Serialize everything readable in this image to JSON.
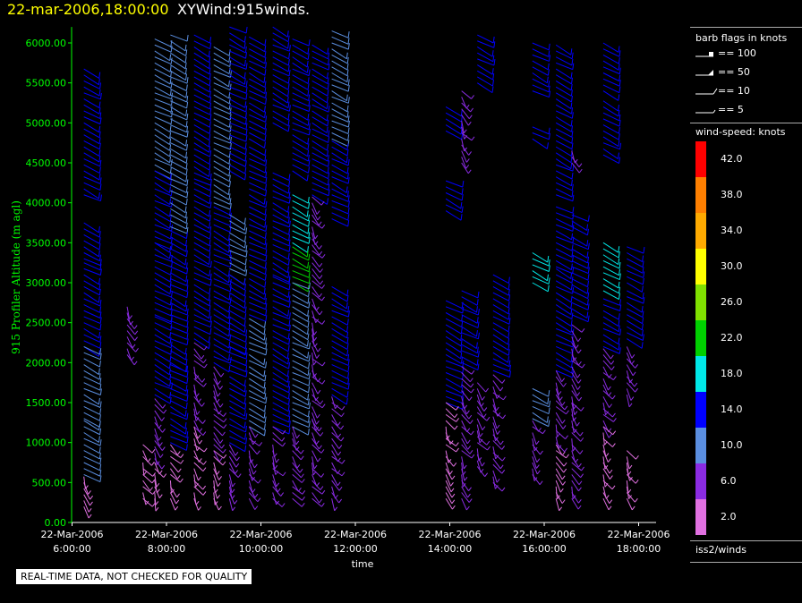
{
  "title": {
    "datetime": "22-mar-2006,18:00:00",
    "name": "XYWind:915winds."
  },
  "notice": "REAL-TIME DATA, NOT CHECKED FOR QUALITY",
  "legend": {
    "barb_title": "barb flags in knots",
    "barbs": [
      {
        "kind": "flag",
        "label": "== 100"
      },
      {
        "kind": "pennant",
        "label": "== 50"
      },
      {
        "kind": "full",
        "label": "== 10"
      },
      {
        "kind": "half",
        "label": "== 5"
      }
    ],
    "colorbar_title": "wind-speed: knots",
    "colorbar": [
      {
        "label": "42.0",
        "color": "#ff0000"
      },
      {
        "label": "38.0",
        "color": "#ff7f00"
      },
      {
        "label": "34.0",
        "color": "#ffaa00"
      },
      {
        "label": "30.0",
        "color": "#ffff00"
      },
      {
        "label": "26.0",
        "color": "#80e000"
      },
      {
        "label": "22.0",
        "color": "#00d000"
      },
      {
        "label": "18.0",
        "color": "#00e8e8"
      },
      {
        "label": "14.0",
        "color": "#0000ff"
      },
      {
        "label": "10.0",
        "color": "#5a8ee0"
      },
      {
        "label": "6.0",
        "color": "#8a2be2"
      },
      {
        "label": "2.0",
        "color": "#e070e0"
      }
    ],
    "footer": "iss2/winds"
  },
  "chart_data": {
    "type": "scatter",
    "title": "22-mar-2006,18:00:00  XYWind:915winds.",
    "xlabel": "time",
    "ylabel": "915 Profiler Altitude (m agl)",
    "xlim": [
      "22-Mar-2006 5:50:00",
      "22-Mar-2006 18:15:00"
    ],
    "ylim": [
      0,
      6200
    ],
    "x_ticks": [
      {
        "date": "22-Mar-2006",
        "time": "6:00:00"
      },
      {
        "date": "22-Mar-2006",
        "time": "8:00:00"
      },
      {
        "date": "22-Mar-2006",
        "time": "10:00:00"
      },
      {
        "date": "22-Mar-2006",
        "time": "12:00:00"
      },
      {
        "date": "22-Mar-2006",
        "time": "14:00:00"
      },
      {
        "date": "22-Mar-2006",
        "time": "16:00:00"
      },
      {
        "date": "22-Mar-2006",
        "time": "18:00:00"
      }
    ],
    "y_ticks": [
      "0.00",
      "500.00",
      "1000.00",
      "1500.00",
      "2000.00",
      "2500.00",
      "3000.00",
      "3500.00",
      "4000.00",
      "4500.00",
      "5000.00",
      "5500.00",
      "6000.00"
    ],
    "grid": false,
    "legend_position": "right",
    "wind_barbs": [
      {
        "time": "6:15",
        "segments": [
          [
            4100,
            5700,
            14
          ],
          [
            3300,
            3800,
            14
          ],
          [
            2200,
            3300,
            14
          ],
          [
            1300,
            2200,
            10
          ],
          [
            600,
            1300,
            10
          ],
          [
            200,
            600,
            2
          ]
        ]
      },
      {
        "time": "7:10",
        "segments": [
          [
            2100,
            2700,
            6
          ]
        ]
      },
      {
        "time": "7:30",
        "segments": [
          [
            300,
            1000,
            2
          ]
        ]
      },
      {
        "time": "7:45",
        "segments": [
          [
            4400,
            6100,
            10
          ],
          [
            3500,
            4400,
            14
          ],
          [
            2600,
            3500,
            14
          ],
          [
            1600,
            2600,
            14
          ],
          [
            800,
            1600,
            6
          ],
          [
            300,
            800,
            2
          ]
        ]
      },
      {
        "time": "8:05",
        "segments": [
          [
            3700,
            6100,
            10
          ],
          [
            2000,
            3700,
            14
          ],
          [
            1000,
            2000,
            14
          ],
          [
            300,
            1000,
            2
          ]
        ]
      },
      {
        "time": "8:35",
        "segments": [
          [
            4300,
            6100,
            14
          ],
          [
            2300,
            4300,
            14
          ],
          [
            1200,
            2300,
            6
          ],
          [
            300,
            1200,
            2
          ]
        ]
      },
      {
        "time": "9:00",
        "segments": [
          [
            4000,
            6000,
            10
          ],
          [
            2000,
            4000,
            14
          ],
          [
            900,
            2000,
            6
          ],
          [
            300,
            900,
            2
          ]
        ]
      },
      {
        "time": "9:20",
        "segments": [
          [
            4400,
            6200,
            14
          ],
          [
            3100,
            3900,
            10
          ],
          [
            2200,
            3100,
            14
          ],
          [
            1000,
            2200,
            14
          ],
          [
            300,
            1000,
            6
          ]
        ]
      },
      {
        "time": "9:45",
        "segments": [
          [
            4800,
            6100,
            14
          ],
          [
            2600,
            4700,
            14
          ],
          [
            1200,
            2600,
            10
          ],
          [
            300,
            1200,
            6
          ]
        ]
      },
      {
        "time": "10:15",
        "segments": [
          [
            5000,
            6200,
            14
          ],
          [
            3100,
            4400,
            14
          ],
          [
            1200,
            3100,
            14
          ],
          [
            300,
            1200,
            6
          ]
        ]
      },
      {
        "time": "10:40",
        "segments": [
          [
            4400,
            6100,
            14
          ],
          [
            3500,
            4100,
            18
          ],
          [
            3000,
            3500,
            22
          ],
          [
            1200,
            3000,
            10
          ],
          [
            300,
            1200,
            6
          ]
        ]
      },
      {
        "time": "11:05",
        "segments": [
          [
            4100,
            6000,
            14
          ],
          [
            1300,
            4100,
            6
          ],
          [
            300,
            1300,
            6
          ]
        ]
      },
      {
        "time": "11:30",
        "segments": [
          [
            4800,
            6200,
            10
          ],
          [
            3800,
            4800,
            14
          ],
          [
            1600,
            3000,
            14
          ],
          [
            300,
            1600,
            6
          ]
        ]
      },
      {
        "time": "13:55",
        "segments": [
          [
            4900,
            5200,
            14
          ],
          [
            3900,
            4300,
            14
          ],
          [
            1500,
            2800,
            14
          ],
          [
            300,
            1500,
            2
          ]
        ]
      },
      {
        "time": "14:15",
        "segments": [
          [
            4500,
            5400,
            6
          ],
          [
            2000,
            2900,
            14
          ],
          [
            300,
            2000,
            6
          ]
        ]
      },
      {
        "time": "14:35",
        "segments": [
          [
            5500,
            6100,
            14
          ],
          [
            700,
            1800,
            6
          ]
        ]
      },
      {
        "time": "14:55",
        "segments": [
          [
            1900,
            3100,
            14
          ],
          [
            500,
            1900,
            6
          ]
        ]
      },
      {
        "time": "15:45",
        "segments": [
          [
            5400,
            6000,
            14
          ],
          [
            4800,
            5000,
            14
          ],
          [
            3000,
            3400,
            18
          ],
          [
            1300,
            1700,
            10
          ],
          [
            600,
            1300,
            6
          ]
        ]
      },
      {
        "time": "16:15",
        "segments": [
          [
            4100,
            6000,
            14
          ],
          [
            3200,
            4000,
            14
          ],
          [
            1900,
            3200,
            14
          ],
          [
            1000,
            1900,
            6
          ],
          [
            300,
            1000,
            2
          ]
        ]
      },
      {
        "time": "16:35",
        "segments": [
          [
            4500,
            4700,
            6
          ],
          [
            3700,
            3900,
            14
          ],
          [
            2600,
            3600,
            14
          ],
          [
            1500,
            2500,
            6
          ],
          [
            300,
            1500,
            6
          ]
        ]
      },
      {
        "time": "17:15",
        "segments": [
          [
            5400,
            6000,
            14
          ],
          [
            4600,
            5300,
            14
          ],
          [
            2900,
            3500,
            18
          ],
          [
            2200,
            2800,
            14
          ],
          [
            1200,
            2200,
            6
          ],
          [
            300,
            1200,
            2
          ]
        ]
      },
      {
        "time": "17:45",
        "segments": [
          [
            3000,
            3500,
            14
          ],
          [
            2300,
            2900,
            14
          ],
          [
            1600,
            2200,
            6
          ],
          [
            300,
            900,
            2
          ]
        ]
      }
    ]
  }
}
